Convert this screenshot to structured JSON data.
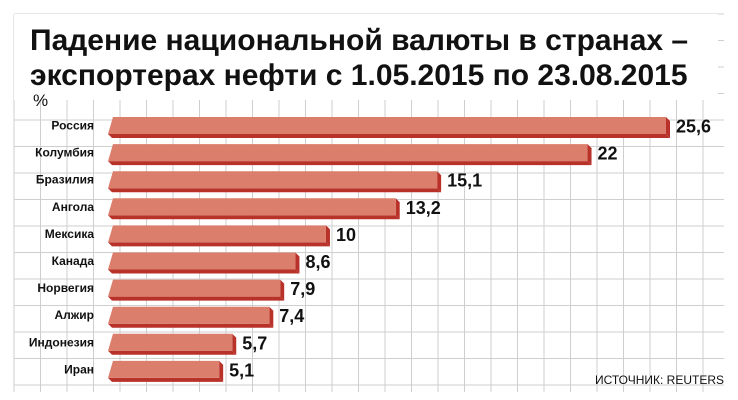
{
  "chart_data": {
    "type": "bar",
    "orientation": "horizontal",
    "title_lines": [
      "Падение национальной валюты в странах –",
      "экспортерах нефти с 1.05.2015 по 23.08.2015"
    ],
    "unit": "%",
    "categories": [
      "Россия",
      "Колумбия",
      "Бразилия",
      "Ангола",
      "Мексика",
      "Канада",
      "Норвегия",
      "Алжир",
      "Индонезия",
      "Иран"
    ],
    "values": [
      25.6,
      22,
      15.1,
      13.2,
      10,
      8.6,
      7.9,
      7.4,
      5.7,
      5.1
    ],
    "value_labels": [
      "25,6",
      "22",
      "15,1",
      "13,2",
      "10",
      "8,6",
      "7,9",
      "7,4",
      "5,7",
      "5,1"
    ],
    "xlim": [
      0,
      25.6
    ],
    "grid": true,
    "legend": "none",
    "colors": {
      "bar_face": "#db7e6c",
      "bar_shade": "#b8322a",
      "grid": "#cfcfcf",
      "title_bg": "#ffffff"
    }
  },
  "source": "ИСТОЧНИК: REUTERS"
}
